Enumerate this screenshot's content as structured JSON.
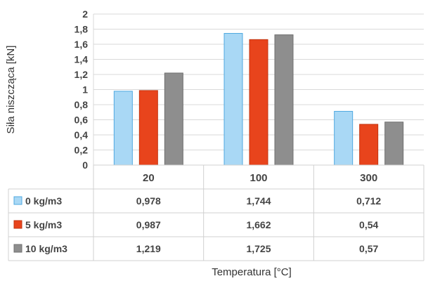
{
  "chart_data": {
    "type": "bar",
    "categories": [
      "20",
      "100",
      "300"
    ],
    "series": [
      {
        "name": "0 kg/m3",
        "values": [
          0.978,
          1.744,
          0.712
        ],
        "labels": [
          "0,978",
          "1,744",
          "0,712"
        ],
        "color": "#a9d8f5",
        "stroke": "#4fa9e0"
      },
      {
        "name": "5 kg/m3",
        "values": [
          0.987,
          1.662,
          0.54
        ],
        "labels": [
          "0,987",
          "1,662",
          "0,54"
        ],
        "color": "#e8441c",
        "stroke": "#c23510"
      },
      {
        "name": "10 kg/m3",
        "values": [
          1.219,
          1.725,
          0.57
        ],
        "labels": [
          "1,219",
          "1,725",
          "0,57"
        ],
        "color": "#8e8e8e",
        "stroke": "#707070"
      }
    ],
    "xlabel": "Temperatura [°C]",
    "ylabel": "Siła niszcząca [kN]",
    "ylim": [
      0,
      2
    ],
    "yticks": [
      0,
      0.2,
      0.4,
      0.6,
      0.8,
      1,
      1.2,
      1.4,
      1.6,
      1.8,
      2
    ],
    "ytick_labels": [
      "0",
      "0,2",
      "0,4",
      "0,6",
      "0,8",
      "1",
      "1,2",
      "1,4",
      "1,6",
      "1,8",
      "2"
    ],
    "grid": true,
    "legend": "data-table"
  }
}
